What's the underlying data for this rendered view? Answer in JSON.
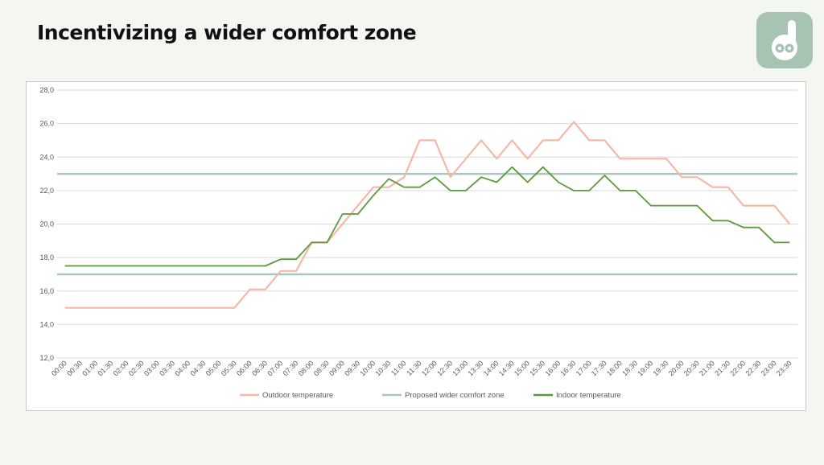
{
  "slide": {
    "title": "Incentivizing a wider comfort zone",
    "logo_icon": "owl-d-logo-icon"
  },
  "colors": {
    "background": "#f3f6f1",
    "logo": "#a7c4b2",
    "outdoor": "#f4b9a6",
    "comfort": "#a9c8bd",
    "indoor": "#5b9a3c",
    "grid": "#d9d9d9"
  },
  "chart_data": {
    "type": "line",
    "title": "",
    "xlabel": "",
    "ylabel": "",
    "ylim": [
      12,
      28
    ],
    "yticks": [
      "12,0",
      "14,0",
      "16,0",
      "18,0",
      "20,0",
      "22,0",
      "24,0",
      "26,0",
      "28,0"
    ],
    "grid": "horizontal",
    "legend_position": "bottom",
    "x": [
      "00:00",
      "00:30",
      "01:00",
      "01:30",
      "02:00",
      "02:30",
      "03:00",
      "03:30",
      "04:00",
      "04:30",
      "05:00",
      "05:30",
      "06:00",
      "06:30",
      "07:00",
      "07:30",
      "08:00",
      "08:30",
      "09:00",
      "09:30",
      "10:00",
      "10:30",
      "11:00",
      "11:30",
      "12:00",
      "12:30",
      "13:00",
      "13:30",
      "14:00",
      "14:30",
      "15:00",
      "15:30",
      "16:00",
      "16:30",
      "17:00",
      "17:30",
      "18:00",
      "18:30",
      "19:00",
      "19:30",
      "20:00",
      "20:30",
      "21:00",
      "21:30",
      "22:00",
      "22:30",
      "23:00",
      "23:30"
    ],
    "series": [
      {
        "name": "Outdoor temperature",
        "values": [
          15,
          15,
          15,
          15,
          15,
          15,
          15,
          15,
          15,
          15,
          15,
          15,
          16.1,
          16.1,
          17.2,
          17.2,
          18.9,
          18.9,
          20,
          21.1,
          22.2,
          22.2,
          22.8,
          25,
          25,
          22.8,
          23.9,
          25,
          23.9,
          25,
          23.9,
          25,
          25,
          26.1,
          25,
          25,
          23.9,
          23.9,
          23.9,
          23.9,
          22.8,
          22.8,
          22.2,
          22.2,
          21.1,
          21.1,
          21.1,
          20
        ]
      },
      {
        "name": "Proposed wider comfort zone",
        "lines": [
          23,
          17
        ]
      },
      {
        "name": "Indoor temperature",
        "values": [
          17.5,
          17.5,
          17.5,
          17.5,
          17.5,
          17.5,
          17.5,
          17.5,
          17.5,
          17.5,
          17.5,
          17.5,
          17.5,
          17.5,
          17.9,
          17.9,
          18.9,
          18.9,
          20.6,
          20.6,
          21.7,
          22.7,
          22.2,
          22.2,
          22.8,
          22,
          22,
          22.8,
          22.5,
          23.4,
          22.5,
          23.4,
          22.5,
          22,
          22,
          22.9,
          22,
          22,
          21.1,
          21.1,
          21.1,
          21.1,
          20.2,
          20.2,
          19.8,
          19.8,
          18.9,
          18.9
        ]
      }
    ]
  }
}
